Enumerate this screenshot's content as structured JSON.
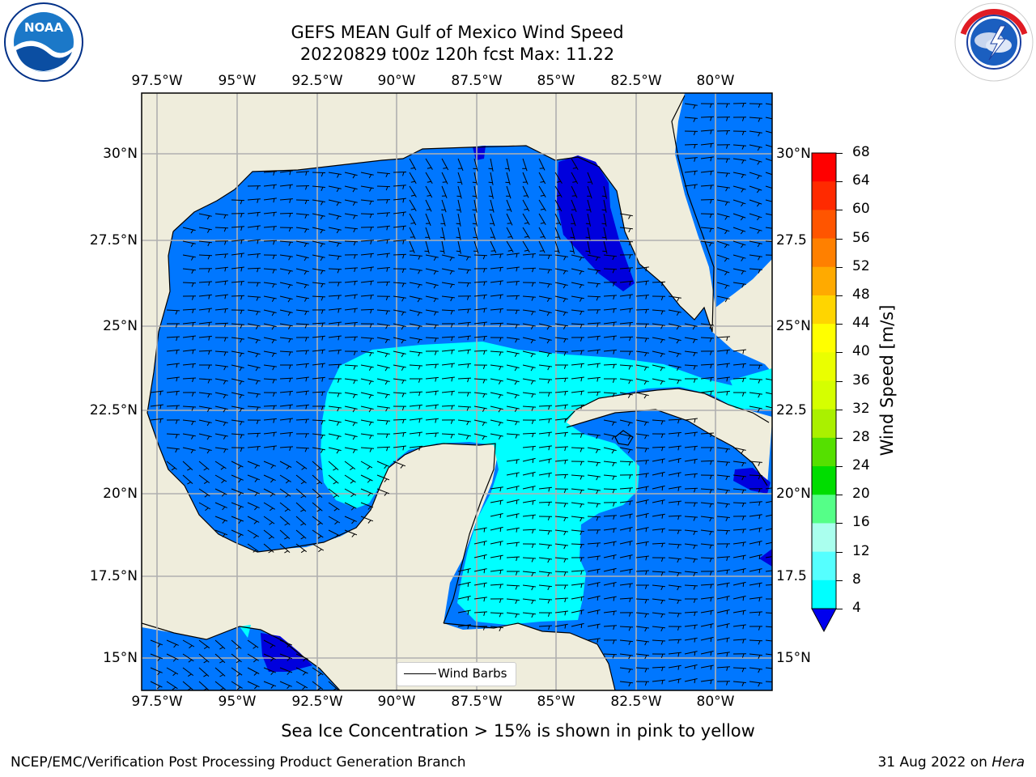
{
  "header": {
    "title_line1": "GEFS MEAN Gulf of Mexico Wind Speed",
    "title_line2": "20220829 t00z 120h fcst   Max: 11.22"
  },
  "logos": {
    "left": "NOAA",
    "right": "NATIONAL WEATHER SERVICE"
  },
  "map": {
    "lon_ticks": [
      "97.5°W",
      "95°W",
      "92.5°W",
      "90°W",
      "87.5°W",
      "85°W",
      "82.5°W",
      "80°W"
    ],
    "lat_ticks": [
      "30°N",
      "27.5°N",
      "25°N",
      "22.5°N",
      "20°N",
      "17.5°N",
      "15°N"
    ],
    "lat_ticks_right": [
      "30°N",
      "27.5",
      "25°N",
      "22.5",
      "20°N",
      "17.5",
      "15°N"
    ],
    "legend_label": "Wind Barbs",
    "colors": {
      "land": "#efeddc",
      "wind_4_8": "#0077ff",
      "wind_below_4": "#0000dd",
      "wind_8_12": "#00ffff",
      "grid": "#b0b0b0"
    }
  },
  "colorbar": {
    "label": "Wind Speed [m/s]",
    "ticks": [
      "68",
      "64",
      "60",
      "56",
      "52",
      "48",
      "44",
      "40",
      "36",
      "32",
      "28",
      "24",
      "20",
      "16",
      "12",
      "8",
      "4"
    ],
    "colors": [
      "#ff0000",
      "#ff2a00",
      "#ff5500",
      "#ff8000",
      "#ffaa00",
      "#ffd500",
      "#ffff00",
      "#eaff00",
      "#d5ff00",
      "#aaf000",
      "#55e000",
      "#00dd00",
      "#55ff88",
      "#aaffee",
      "#55ffff",
      "#00ffff",
      "#0077ff"
    ],
    "under_color": "#0000ee"
  },
  "caption": "Sea Ice Concentration > 15% is shown in pink to yellow",
  "footer": {
    "left": "NCEP/EMC/Verification Post Processing Product Generation Branch",
    "right_date": "31 Aug 2022 on ",
    "right_machine": "Hera"
  }
}
